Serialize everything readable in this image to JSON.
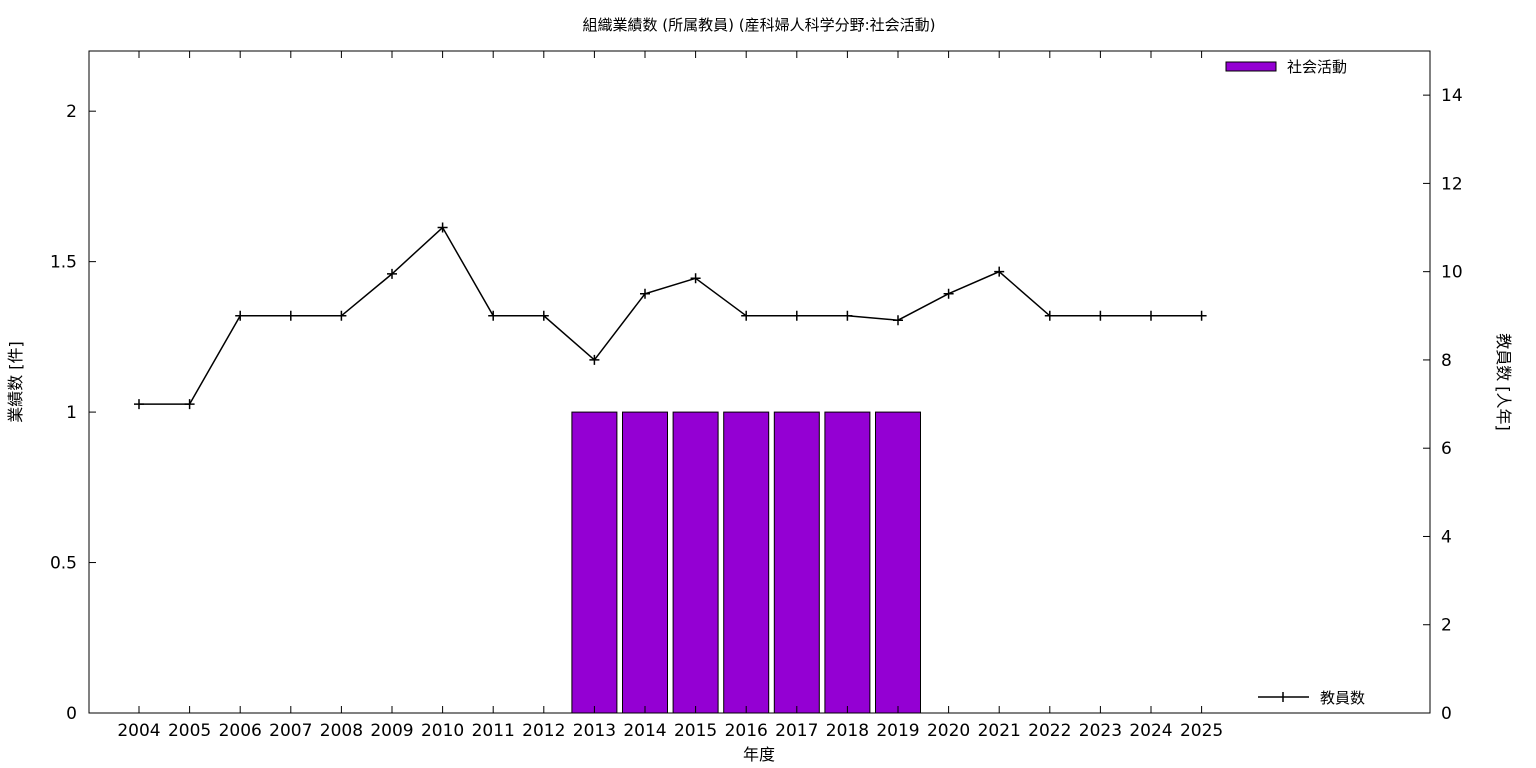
{
  "chart_data": {
    "type": "bar",
    "title": "組織業績数 (所属教員) (産科婦人科学分野:社会活動)",
    "xlabel": "年度",
    "ylabel": "業績数 [件]",
    "y2label": "教員数 [人年]",
    "categories": [
      "2004",
      "2005",
      "2006",
      "2007",
      "2008",
      "2009",
      "2010",
      "2011",
      "2012",
      "2013",
      "2014",
      "2015",
      "2016",
      "2017",
      "2018",
      "2019",
      "2020",
      "2021",
      "2022",
      "2023",
      "2024",
      "2025"
    ],
    "ylim": [
      0,
      2.2
    ],
    "y2lim": [
      0,
      15
    ],
    "yticks": [
      0,
      0.5,
      1,
      1.5,
      2
    ],
    "yticklabels": [
      "0",
      "0.5",
      "1",
      "1.5",
      "2"
    ],
    "y2ticks": [
      0,
      2,
      4,
      6,
      8,
      10,
      12,
      14
    ],
    "series": [
      {
        "name": "社会活動",
        "kind": "bar",
        "axis": "left",
        "color": "#9400d3",
        "values": [
          0,
          0,
          0,
          0,
          0,
          0,
          0,
          0,
          0,
          1,
          1,
          1,
          1,
          1,
          1,
          1,
          0,
          0,
          0,
          0,
          0,
          0
        ]
      },
      {
        "name": "教員数",
        "kind": "line",
        "axis": "right",
        "color": "#000000",
        "values": [
          7,
          7,
          9,
          9,
          9,
          9.95,
          11,
          9,
          9,
          8,
          9.5,
          9.85,
          9,
          9,
          9,
          8.9,
          9.5,
          10,
          9,
          9,
          9,
          9
        ]
      }
    ],
    "legend_position": "top-right",
    "grid": false
  }
}
